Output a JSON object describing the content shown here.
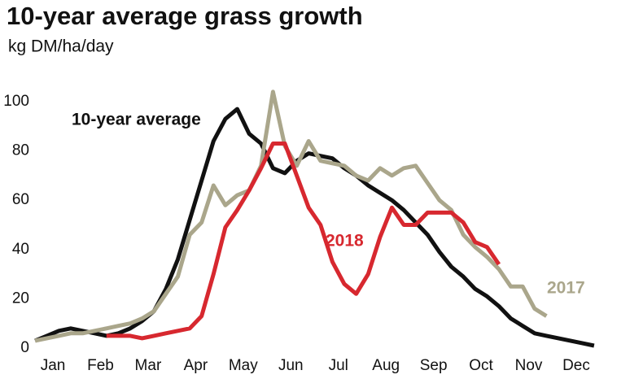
{
  "chart_data": {
    "type": "line",
    "title": "10-year average grass growth",
    "subtitle": "kg DM/ha/day",
    "x": [
      0.125,
      0.375,
      0.625,
      0.875,
      1.125,
      1.375,
      1.625,
      1.875,
      2.125,
      2.375,
      2.625,
      2.875,
      3.125,
      3.375,
      3.625,
      3.875,
      4.125,
      4.375,
      4.625,
      4.875,
      5.125,
      5.375,
      5.625,
      5.875,
      6.125,
      6.375,
      6.625,
      6.875,
      7.125,
      7.375,
      7.625,
      7.875,
      8.125,
      8.375,
      8.625,
      8.875,
      9.125,
      9.375,
      9.625,
      9.875,
      10.125,
      10.375,
      10.625,
      10.875,
      11.125,
      11.375,
      11.625,
      11.875
    ],
    "xlim": [
      0,
      12
    ],
    "xticks": [
      {
        "value": 0.5,
        "label": "Jan"
      },
      {
        "value": 1.5,
        "label": "Feb"
      },
      {
        "value": 2.5,
        "label": "Mar"
      },
      {
        "value": 3.5,
        "label": "Apr"
      },
      {
        "value": 4.5,
        "label": "May"
      },
      {
        "value": 5.5,
        "label": "Jun"
      },
      {
        "value": 6.5,
        "label": "Jul"
      },
      {
        "value": 7.5,
        "label": "Aug"
      },
      {
        "value": 8.5,
        "label": "Sep"
      },
      {
        "value": 9.5,
        "label": "Oct"
      },
      {
        "value": 10.5,
        "label": "Nov"
      },
      {
        "value": 11.5,
        "label": "Dec"
      }
    ],
    "ylim": [
      0,
      110
    ],
    "yticks": [
      0,
      20,
      40,
      60,
      80,
      100
    ],
    "grid": false,
    "series": [
      {
        "name": "10-year average",
        "color": "#111111",
        "values": [
          3,
          5,
          7,
          8,
          7,
          6,
          5,
          6,
          8,
          11,
          15,
          24,
          36,
          52,
          68,
          84,
          93,
          97,
          87,
          83,
          73,
          71,
          76,
          79,
          78,
          77,
          73,
          70,
          66,
          63,
          60,
          56,
          51,
          46,
          39,
          33,
          29,
          24,
          21,
          17,
          12,
          9,
          6,
          5,
          4,
          3,
          2,
          1
        ]
      },
      {
        "name": "2017",
        "color": "#aaa68b",
        "values": [
          3,
          4,
          5,
          6,
          6,
          7,
          8,
          9,
          10,
          12,
          15,
          22,
          29,
          46,
          51,
          66,
          58,
          62,
          64,
          74,
          104,
          82,
          74,
          84,
          76,
          75,
          74,
          70,
          68,
          73,
          70,
          73,
          74,
          67,
          60,
          56,
          46,
          41,
          37,
          32,
          25,
          25,
          16,
          13,
          null,
          null,
          null,
          null
        ]
      },
      {
        "name": "2018",
        "color": "#d7282f",
        "values": [
          null,
          null,
          null,
          null,
          null,
          null,
          5,
          5,
          5,
          4,
          5,
          6,
          7,
          8,
          13,
          30,
          49,
          56,
          64,
          73,
          83,
          83,
          70,
          57,
          50,
          35,
          26,
          22,
          30,
          45,
          57,
          50,
          50,
          55,
          55,
          55,
          51,
          43,
          41,
          34,
          null,
          null,
          null,
          null,
          null,
          null,
          null,
          null
        ]
      }
    ]
  }
}
